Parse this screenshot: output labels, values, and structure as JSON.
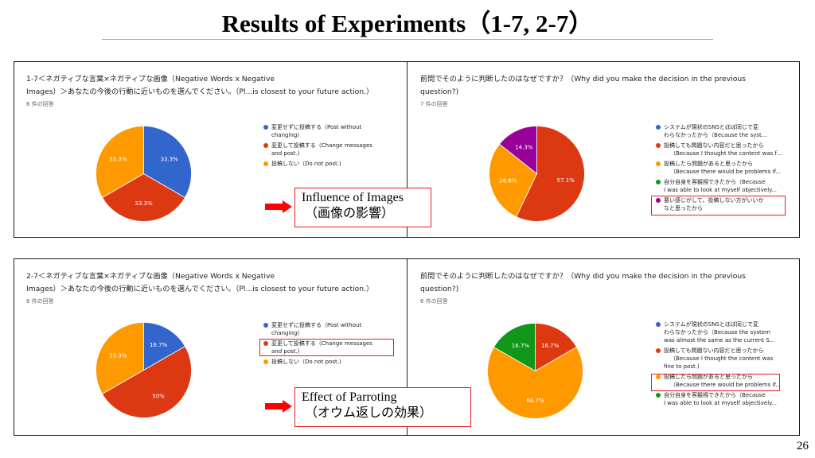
{
  "slide": {
    "title": "Results of Experiments（1-7, 2-7）",
    "page_number": "26"
  },
  "panels": {
    "top_left": {
      "question": [
        "1-7＜ネガティブな言葉×ネガティブな画像（Negative Words x Negative",
        "Images）＞あなたの今後の行動に近いものを選んでください。（Pl...is closest to your future action.）"
      ],
      "responses": "6 件の回答",
      "legend": [
        {
          "lines": [
            "変更せずに投稿する（Post without",
            "changing)"
          ],
          "color": "#3366cc"
        },
        {
          "lines": [
            "変更して投稿する（Change messages",
            "and post.)"
          ],
          "color": "#dc3912"
        },
        {
          "lines": [
            "投稿しない（Do not post.)"
          ],
          "color": "#ff9900"
        }
      ]
    },
    "top_right": {
      "question": [
        "前問でそのように判断したのはなぜですか？（Why did you make the decision in the previous",
        "question?)"
      ],
      "responses": "7 件の回答",
      "legend": [
        {
          "lines": [
            "システムが現状のSNSとほぼ同じで変",
            "わらなかったから（Because the syst..."
          ],
          "color": "#3366cc"
        },
        {
          "lines": [
            "投稿しても問題ない内容だと思ったから",
            "（Because I thought the content was f..."
          ],
          "color": "#dc3912"
        },
        {
          "lines": [
            "投稿したら問題があると思ったから",
            "（Because there would be problems if..."
          ],
          "color": "#ff9900"
        },
        {
          "lines": [
            "自分自身を客観視できたから（Because",
            "I was able to look at myself objectively..."
          ],
          "color": "#109618"
        },
        {
          "lines": [
            "悪い感じがして、投稿しない方がいいか",
            "なと思ったから"
          ],
          "color": "#990099"
        }
      ]
    },
    "bottom_left": {
      "question": [
        "2-7＜ネガティブな言葉×ネガティブな画像（Negative Words x Negative",
        "Images）＞あなたの今後の行動に近いものを選んでください。（Pl...is closest to your future action.）"
      ],
      "responses": "6 件の回答",
      "legend": [
        {
          "lines": [
            "変更せずに投稿する（Post without",
            "changing)"
          ],
          "color": "#3366cc"
        },
        {
          "lines": [
            "変更して投稿する（Change messages",
            "and post.)"
          ],
          "color": "#dc3912"
        },
        {
          "lines": [
            "投稿しない（Do not post.)"
          ],
          "color": "#ff9900"
        }
      ]
    },
    "bottom_right": {
      "question": [
        "前問でそのように判断したのはなぜですか？（Why did you make the decision in the previous",
        "question?)"
      ],
      "responses": "6 件の回答",
      "legend": [
        {
          "lines": [
            "システムが現状のSNSとほぼ同じで変",
            "わらなかったから（Because the system",
            "was almost the same as the current S..."
          ],
          "color": "#3366cc"
        },
        {
          "lines": [
            "投稿しても問題ない内容だと思ったから",
            "（Because I thought the content was",
            "fine to post.)"
          ],
          "color": "#dc3912"
        },
        {
          "lines": [
            "投稿したら問題があると思ったから",
            "（Because there would be problems if..."
          ],
          "color": "#ff9900"
        },
        {
          "lines": [
            "自分自身を客観視できたから（Because",
            "I was able to look at myself objectively..."
          ],
          "color": "#109618"
        }
      ]
    }
  },
  "callouts": {
    "top": {
      "line1": "Influence of Images",
      "line2": "（画像の影響）"
    },
    "bottom": {
      "line1": "Effect of Parroting",
      "line2": "（オウム返しの効果）"
    }
  },
  "chart_data": [
    {
      "type": "pie",
      "slices": [
        {
          "label": "変更せずに投稿する（Post without changing)",
          "value": 33.3,
          "display": "33.3%",
          "color": "#3366cc"
        },
        {
          "label": "変更して投稿する（Change messages and post.)",
          "value": 33.3,
          "display": "33.3%",
          "color": "#dc3912"
        },
        {
          "label": "投稿しない（Do not post.)",
          "value": 33.3,
          "display": "33.3%",
          "color": "#ff9900"
        }
      ]
    },
    {
      "type": "pie",
      "slices": [
        {
          "label": "システムが現状のSNSとほぼ同じで変わらなかったから",
          "value": 0,
          "display": "",
          "color": "#3366cc"
        },
        {
          "label": "投稿しても問題ない内容だと思ったから",
          "value": 57.1,
          "display": "57.1%",
          "color": "#dc3912"
        },
        {
          "label": "投稿したら問題があると思ったから",
          "value": 28.6,
          "display": "28.6%",
          "color": "#ff9900"
        },
        {
          "label": "自分自身を客観視できたから",
          "value": 0,
          "display": "",
          "color": "#109618"
        },
        {
          "label": "悪い感じがして、投稿しない方がいいかなと思ったから",
          "value": 14.3,
          "display": "14.3%",
          "color": "#990099"
        }
      ]
    },
    {
      "type": "pie",
      "slices": [
        {
          "label": "変更せずに投稿する（Post without changing)",
          "value": 16.7,
          "display": "16.7%",
          "color": "#3366cc"
        },
        {
          "label": "変更して投稿する（Change messages and post.)",
          "value": 50,
          "display": "50%",
          "color": "#dc3912"
        },
        {
          "label": "投稿しない（Do not post.)",
          "value": 33.3,
          "display": "33.3%",
          "color": "#ff9900"
        }
      ]
    },
    {
      "type": "pie",
      "slices": [
        {
          "label": "システムが現状のSNSとほぼ同じで変わらなかったから",
          "value": 0,
          "display": "",
          "color": "#3366cc"
        },
        {
          "label": "投稿しても問題ない内容だと思ったから",
          "value": 16.7,
          "display": "16.7%",
          "color": "#dc3912"
        },
        {
          "label": "投稿したら問題があると思ったから",
          "value": 66.7,
          "display": "66.7%",
          "color": "#ff9900"
        },
        {
          "label": "自分自身を客観視できたから",
          "value": 16.7,
          "display": "16.7%",
          "color": "#109618"
        }
      ]
    }
  ]
}
